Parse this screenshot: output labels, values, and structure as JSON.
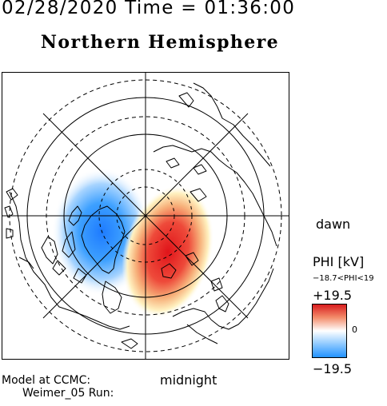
{
  "header": {
    "datetime": "02/28/2020 Time = 01:36:00",
    "hemisphere": "Northern Hemisphere"
  },
  "map_labels": {
    "dawn": "dawn",
    "midnight": "midnight"
  },
  "colorbar": {
    "quantity_label": "PHI [kV]",
    "range_text": "−18.7<PHI<19",
    "max_label": "+19.5",
    "min_label": "−19.5",
    "zero_label": "0",
    "max_value": 19.5,
    "min_value": -19.5,
    "colors": {
      "high": "#d7191c",
      "mid": "#ffffff",
      "low": "#1e90ff"
    }
  },
  "footer": {
    "model_line": "Model at CCMC:",
    "run_line": "Weimer_05 Run:"
  },
  "icons": {
    "map": "polar-projection-map"
  }
}
